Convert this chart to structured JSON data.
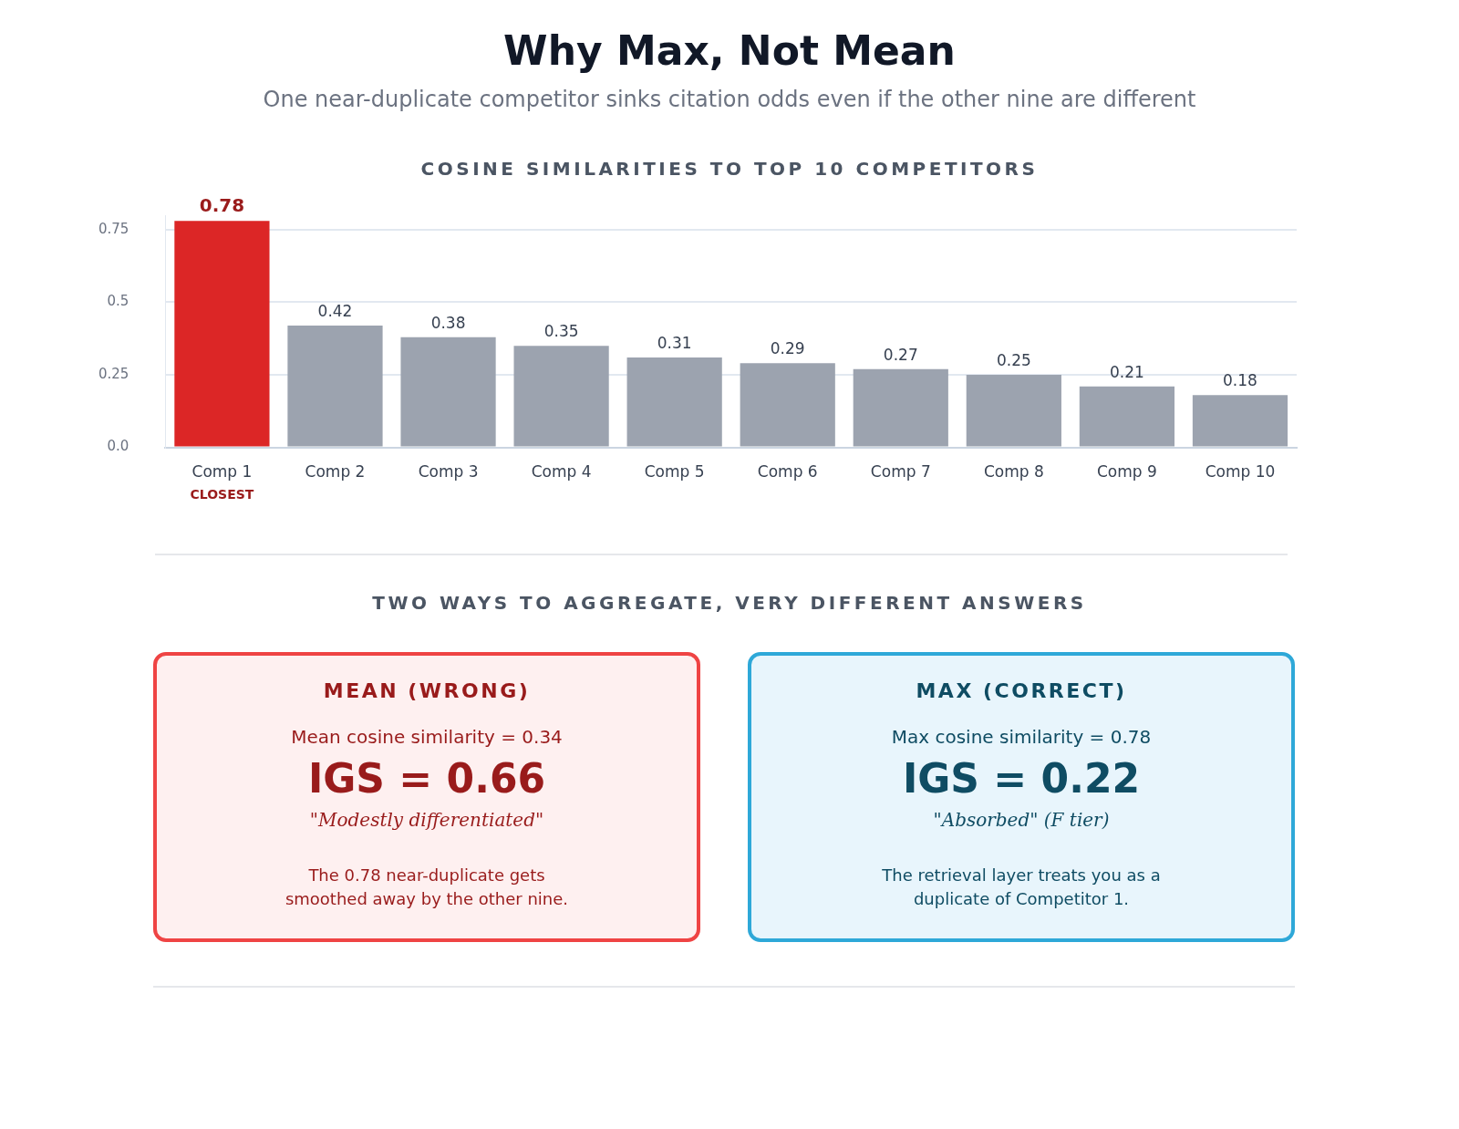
{
  "chart_data": [
    {
      "type": "bar",
      "title": "Why Max, Not Mean",
      "subtitle": "One near-duplicate competitor sinks citation odds even if the other nine are different",
      "categories": [
        "Comp 1",
        "Comp 2",
        "Comp 3",
        "Comp 4",
        "Comp 5",
        "Comp 6",
        "Comp 7",
        "Comp 8",
        "Comp 9",
        "Comp 10"
      ],
      "values": [
        0.78,
        0.42,
        0.38,
        0.35,
        0.31,
        0.29,
        0.27,
        0.25,
        0.21,
        0.18
      ],
      "colors": [
        "#dc2626",
        "#9ca3af",
        "#9ca3af",
        "#9ca3af",
        "#9ca3af",
        "#9ca3af",
        "#9ca3af",
        "#9ca3af",
        "#9ca3af",
        "#9ca3af"
      ],
      "ylim": [
        0,
        0.8
      ],
      "yticks": [
        {
          "value": 0,
          "label": "0.0"
        },
        0.25,
        0.5,
        0.75
      ],
      "grid": "y",
      "legend": false,
      "data_labels": true,
      "annotations": [
        "COSINE SIMILARITIES TO TOP 10 COMPETITORS",
        "CLOSEST",
        "TWO WAYS TO AGGREGATE, VERY DIFFERENT ANSWERS"
      ]
    },
    {
      "type": "other",
      "title": "MEAN (WRONG)",
      "annotations": [
        "Mean cosine similarity = 0.34",
        "IGS = 0.66",
        "\"Modestly differentiated\"",
        "The 0.78 near-duplicate gets smoothed away by the other nine."
      ]
    },
    {
      "type": "other",
      "title": "MAX (CORRECT)",
      "annotations": [
        "Max cosine similarity = 0.78",
        "IGS = 0.22",
        "\"Absorbed\" (F tier)",
        "The retrieval layer treats you as a duplicate of Competitor 1."
      ]
    }
  ]
}
